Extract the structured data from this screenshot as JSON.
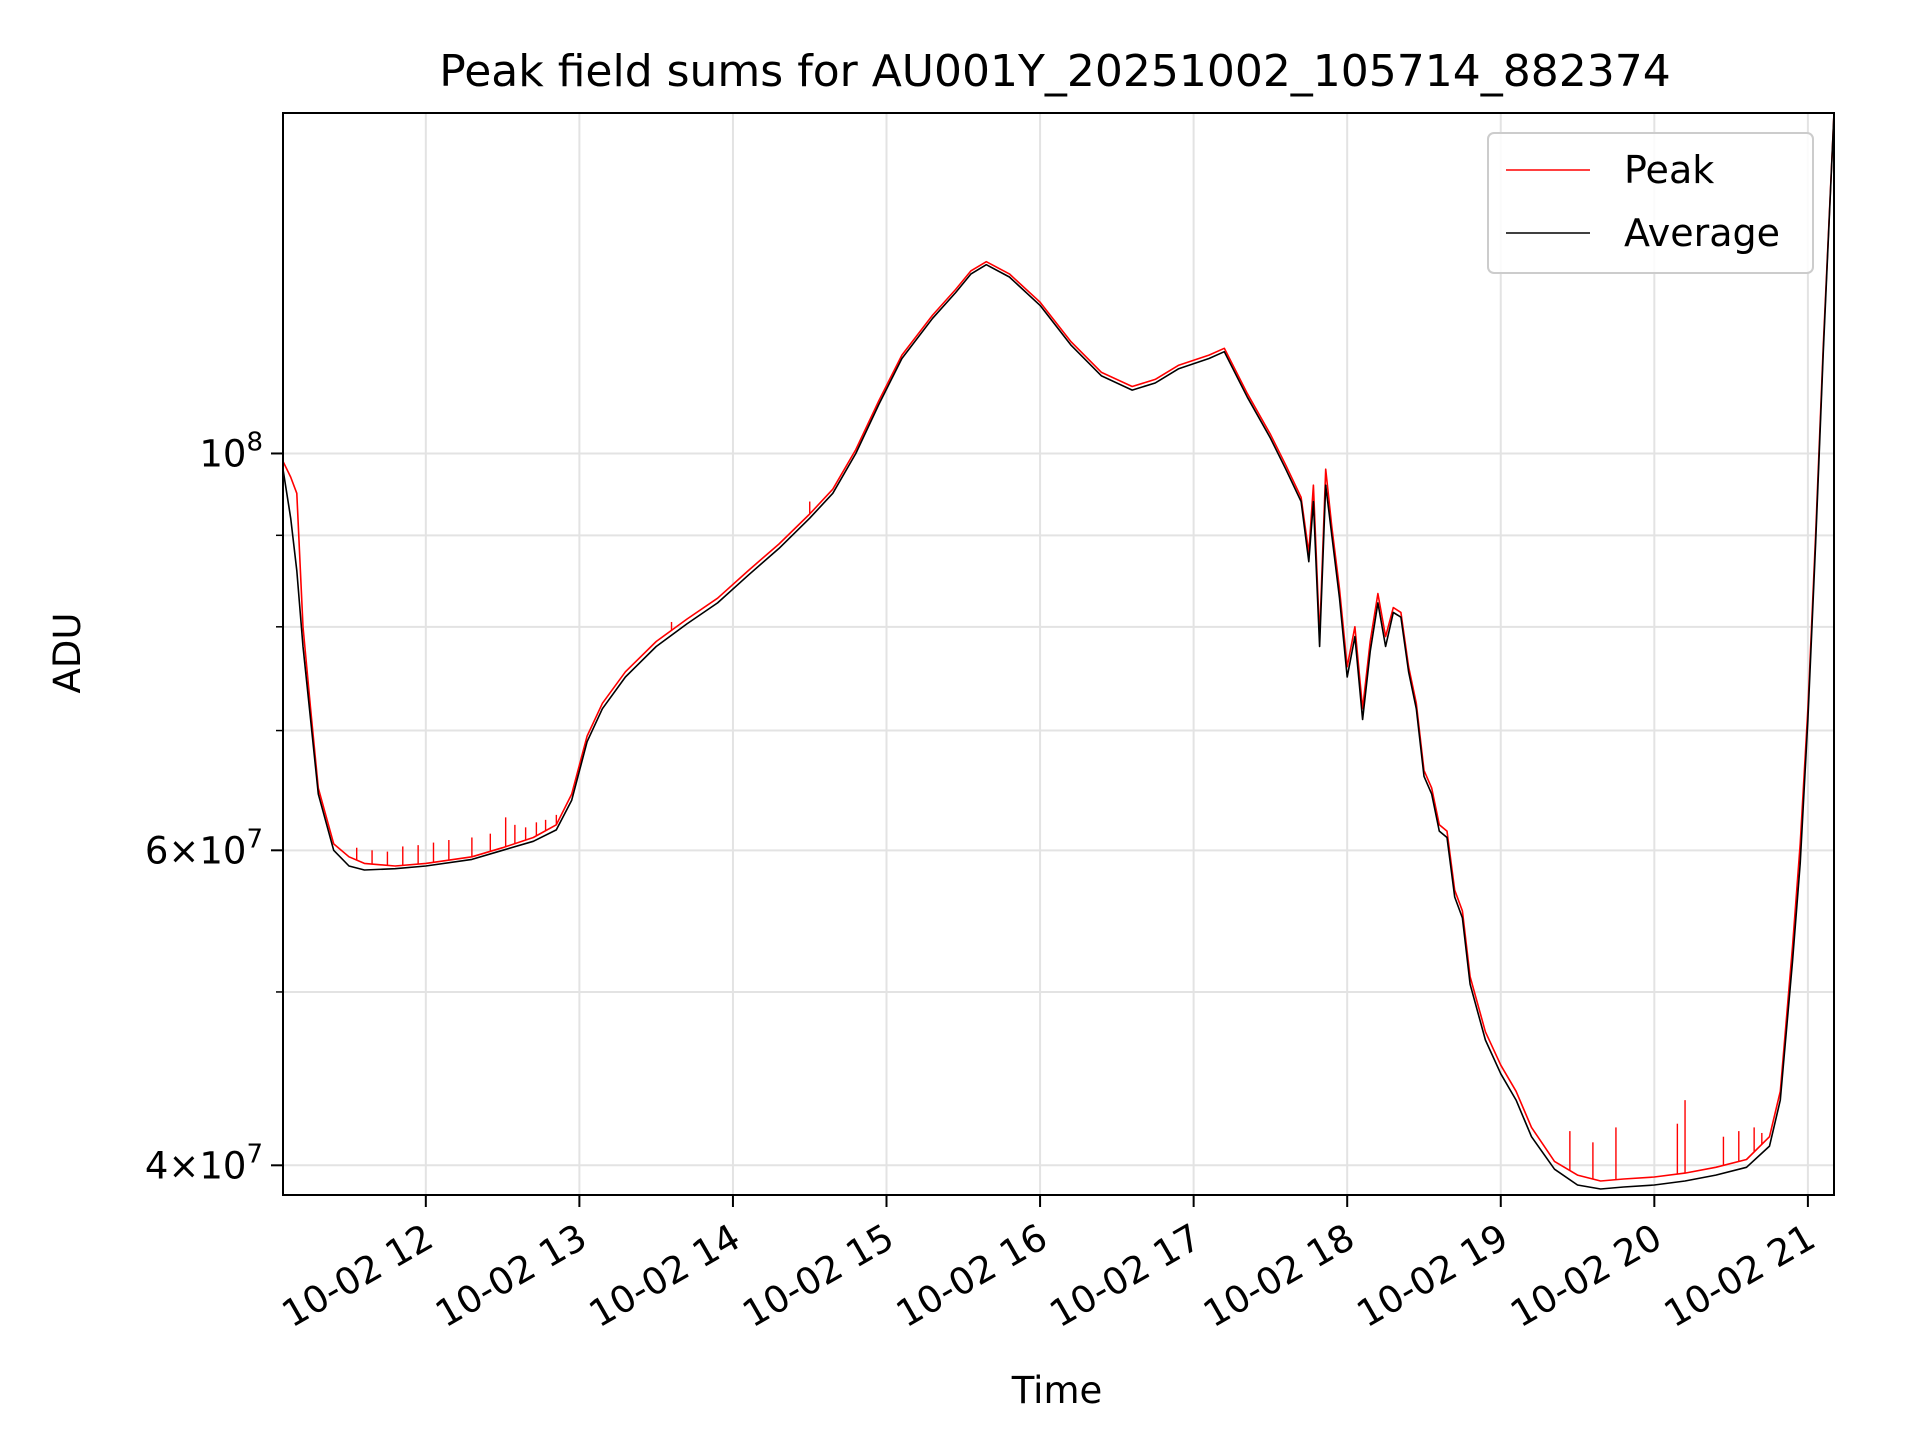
{
  "chart_data": {
    "type": "line",
    "title": "Peak field sums for AU001Y_20251002_105714_882374",
    "xlabel": "Time",
    "ylabel": "ADU",
    "y_scale": "log",
    "xlim": [
      11.07,
      21.17
    ],
    "ylim": [
      38500000,
      155000000
    ],
    "x_ticks": [
      {
        "value": 12,
        "label": "10-02 12"
      },
      {
        "value": 13,
        "label": "10-02 13"
      },
      {
        "value": 14,
        "label": "10-02 14"
      },
      {
        "value": 15,
        "label": "10-02 15"
      },
      {
        "value": 16,
        "label": "10-02 16"
      },
      {
        "value": 17,
        "label": "10-02 17"
      },
      {
        "value": 18,
        "label": "10-02 18"
      },
      {
        "value": 19,
        "label": "10-02 19"
      },
      {
        "value": 20,
        "label": "10-02 20"
      },
      {
        "value": 21,
        "label": "10-02 21"
      }
    ],
    "y_major_ticks": [
      {
        "value": 40000000,
        "mantissa": "4",
        "exponent": "7"
      },
      {
        "value": 60000000,
        "mantissa": "6",
        "exponent": "7"
      },
      {
        "value": 100000000,
        "mantissa": "",
        "exponent": "8"
      }
    ],
    "y_minor_ticks": [
      50000000,
      70000000,
      80000000,
      90000000
    ],
    "grid": true,
    "legend": {
      "position": "upper right",
      "entries": [
        "Peak",
        "Average"
      ]
    },
    "series": [
      {
        "name": "Peak",
        "color": "#ff0000",
        "x": [
          11.07,
          11.12,
          11.16,
          11.2,
          11.25,
          11.3,
          11.4,
          11.5,
          11.6,
          11.8,
          12.0,
          12.3,
          12.5,
          12.7,
          12.85,
          12.95,
          13.05,
          13.15,
          13.3,
          13.5,
          13.7,
          13.9,
          14.1,
          14.3,
          14.5,
          14.65,
          14.8,
          14.95,
          15.1,
          15.3,
          15.45,
          15.55,
          15.65,
          15.8,
          16.0,
          16.2,
          16.4,
          16.6,
          16.75,
          16.9,
          17.1,
          17.2,
          17.35,
          17.5,
          17.6,
          17.7,
          17.75,
          17.78,
          17.82,
          17.86,
          17.9,
          17.95,
          18.0,
          18.05,
          18.1,
          18.15,
          18.2,
          18.25,
          18.3,
          18.35,
          18.4,
          18.45,
          18.5,
          18.55,
          18.6,
          18.65,
          18.7,
          18.75,
          18.8,
          18.9,
          19.0,
          19.1,
          19.2,
          19.35,
          19.5,
          19.65,
          19.8,
          20.0,
          20.2,
          20.4,
          20.6,
          20.75,
          20.82,
          20.9,
          20.95,
          21.0,
          21.05,
          21.1,
          21.17
        ],
        "y": [
          99000000,
          97000000,
          95000000,
          80000000,
          72000000,
          65000000,
          60500000,
          59500000,
          59000000,
          58800000,
          59000000,
          59500000,
          60200000,
          61000000,
          62000000,
          64500000,
          69500000,
          72500000,
          75500000,
          78500000,
          80800000,
          83000000,
          86000000,
          89000000,
          92500000,
          95500000,
          100500000,
          107000000,
          113500000,
          119500000,
          123500000,
          126500000,
          128000000,
          126000000,
          121500000,
          115500000,
          111000000,
          109000000,
          110000000,
          112000000,
          113500000,
          114500000,
          108000000,
          102500000,
          98500000,
          94500000,
          88000000,
          96000000,
          79000000,
          98000000,
          91000000,
          84000000,
          76000000,
          80000000,
          72000000,
          78500000,
          83500000,
          79000000,
          82000000,
          81500000,
          76000000,
          72500000,
          66500000,
          65000000,
          62000000,
          61500000,
          57000000,
          55500000,
          51000000,
          47500000,
          45500000,
          44000000,
          42000000,
          40200000,
          39500000,
          39200000,
          39300000,
          39400000,
          39600000,
          39900000,
          40300000,
          41500000,
          44000000,
          53000000,
          60500000,
          72000000,
          90000000,
          115000000,
          155000000
        ]
      },
      {
        "name": "Average",
        "color": "#000000",
        "x": [
          11.07,
          11.12,
          11.16,
          11.2,
          11.25,
          11.3,
          11.4,
          11.5,
          11.6,
          11.8,
          12.0,
          12.3,
          12.5,
          12.7,
          12.85,
          12.95,
          13.05,
          13.15,
          13.3,
          13.5,
          13.7,
          13.9,
          14.1,
          14.3,
          14.5,
          14.65,
          14.8,
          14.95,
          15.1,
          15.3,
          15.45,
          15.55,
          15.65,
          15.8,
          16.0,
          16.2,
          16.4,
          16.6,
          16.75,
          16.9,
          17.1,
          17.2,
          17.35,
          17.5,
          17.6,
          17.7,
          17.75,
          17.78,
          17.82,
          17.86,
          17.9,
          17.95,
          18.0,
          18.05,
          18.1,
          18.15,
          18.2,
          18.25,
          18.3,
          18.35,
          18.4,
          18.45,
          18.5,
          18.55,
          18.6,
          18.65,
          18.7,
          18.75,
          18.8,
          18.9,
          19.0,
          19.1,
          19.2,
          19.35,
          19.5,
          19.65,
          19.8,
          20.0,
          20.2,
          20.4,
          20.6,
          20.75,
          20.82,
          20.9,
          20.95,
          21.0,
          21.05,
          21.1,
          21.17
        ],
        "y": [
          98000000,
          92000000,
          86000000,
          78000000,
          71000000,
          64500000,
          60000000,
          58800000,
          58500000,
          58600000,
          58800000,
          59300000,
          60000000,
          60700000,
          61600000,
          64000000,
          69000000,
          72000000,
          75000000,
          78000000,
          80300000,
          82500000,
          85500000,
          88500000,
          92000000,
          95000000,
          100000000,
          106500000,
          113000000,
          119000000,
          123000000,
          126000000,
          127500000,
          125500000,
          121000000,
          115000000,
          110500000,
          108500000,
          109500000,
          111500000,
          113000000,
          114000000,
          107500000,
          102000000,
          98000000,
          94000000,
          87000000,
          94000000,
          78000000,
          96000000,
          90000000,
          83000000,
          75000000,
          79000000,
          71000000,
          77500000,
          82500000,
          78000000,
          81500000,
          81000000,
          75500000,
          72000000,
          66000000,
          64500000,
          61500000,
          61000000,
          56500000,
          55000000,
          50500000,
          47000000,
          45000000,
          43500000,
          41500000,
          39800000,
          39000000,
          38800000,
          38900000,
          39000000,
          39200000,
          39500000,
          39900000,
          41000000,
          43500000,
          52000000,
          59000000,
          71000000,
          89000000,
          114000000,
          155000000
        ]
      }
    ],
    "peak_spikes": [
      {
        "x": 11.55,
        "y": 60200000
      },
      {
        "x": 11.65,
        "y": 60000000
      },
      {
        "x": 11.75,
        "y": 59900000
      },
      {
        "x": 11.85,
        "y": 60300000
      },
      {
        "x": 11.95,
        "y": 60400000
      },
      {
        "x": 12.05,
        "y": 60600000
      },
      {
        "x": 12.15,
        "y": 60800000
      },
      {
        "x": 12.3,
        "y": 61000000
      },
      {
        "x": 12.42,
        "y": 61300000
      },
      {
        "x": 12.52,
        "y": 62600000
      },
      {
        "x": 12.58,
        "y": 62000000
      },
      {
        "x": 12.65,
        "y": 61800000
      },
      {
        "x": 12.72,
        "y": 62200000
      },
      {
        "x": 12.78,
        "y": 62400000
      },
      {
        "x": 12.85,
        "y": 62800000
      },
      {
        "x": 13.6,
        "y": 80500000
      },
      {
        "x": 14.5,
        "y": 94000000
      },
      {
        "x": 19.45,
        "y": 41800000
      },
      {
        "x": 19.6,
        "y": 41200000
      },
      {
        "x": 19.75,
        "y": 42000000
      },
      {
        "x": 20.15,
        "y": 42200000
      },
      {
        "x": 20.2,
        "y": 43500000
      },
      {
        "x": 20.45,
        "y": 41500000
      },
      {
        "x": 20.55,
        "y": 41800000
      },
      {
        "x": 20.65,
        "y": 42000000
      },
      {
        "x": 20.7,
        "y": 41700000
      }
    ]
  }
}
